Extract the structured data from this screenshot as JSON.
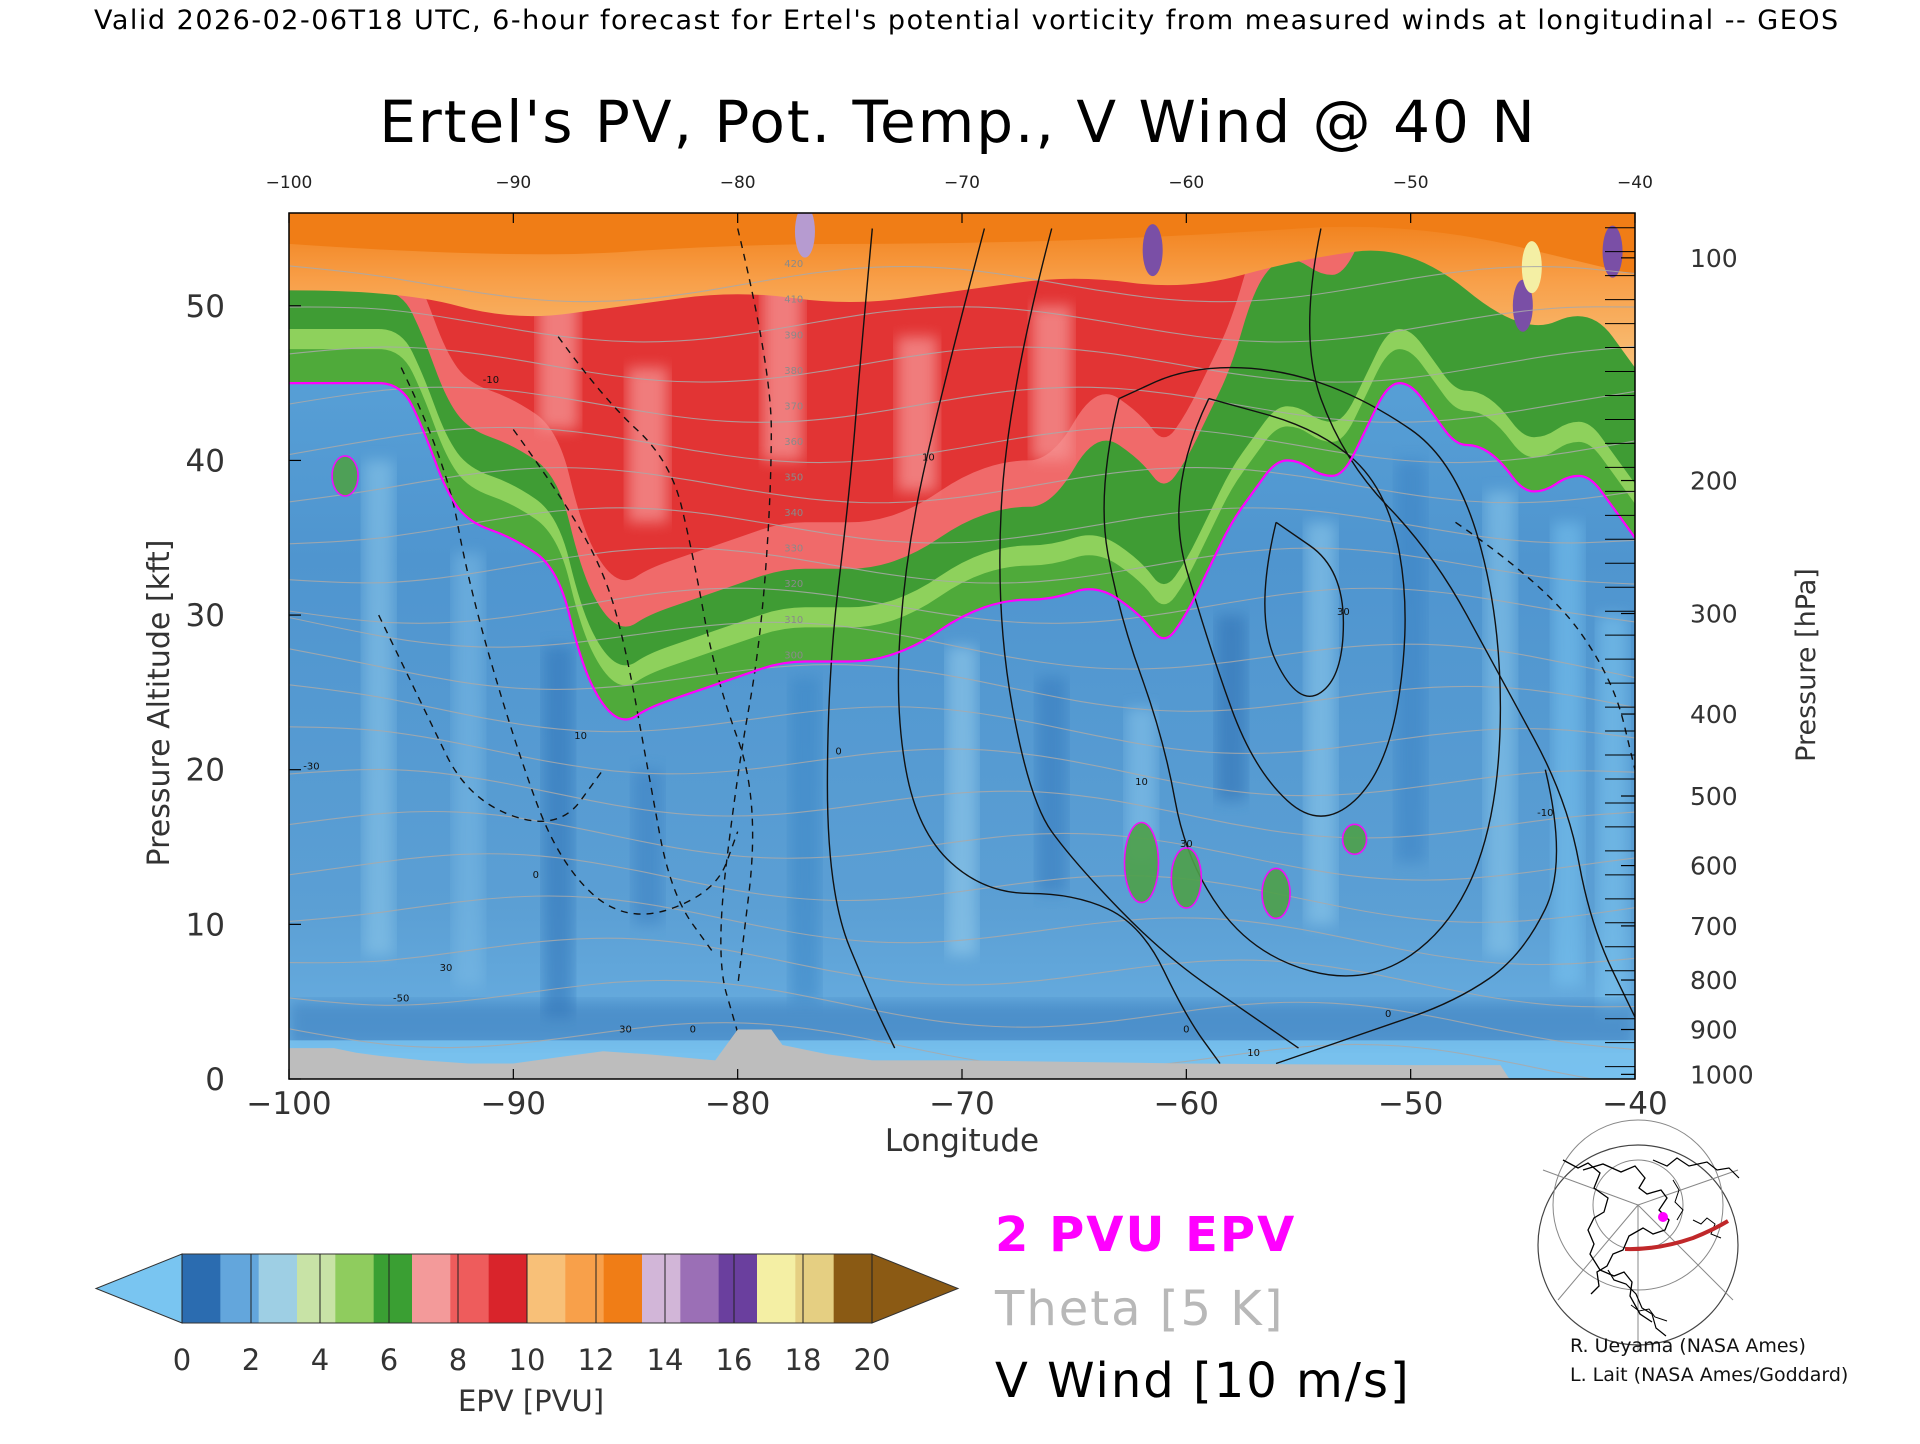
{
  "header": {
    "valid_line": "Valid 2026-02-06T18 UTC, 6-hour forecast for Ertel's potential vorticity from measured winds at longitudinal -- GEOS"
  },
  "chart_data": {
    "type": "heatmap",
    "title": "Ertel's PV, Pot. Temp., V Wind @ 40 N",
    "xlabel": "Longitude",
    "ylabel_left": "Pressure Altitude [kft]",
    "ylabel_right": "Pressure [hPa]",
    "xlim": [
      -100,
      -40
    ],
    "ylim": [
      0,
      56
    ],
    "x_ticks_bottom": [
      "−100",
      "−90",
      "−80",
      "−70",
      "−60",
      "−50",
      "−40"
    ],
    "x_ticks_top": [
      "−100",
      "−90",
      "−80",
      "−70",
      "−60",
      "−50",
      "−40"
    ],
    "y_ticks_left": [
      "0",
      "10",
      "20",
      "30",
      "40",
      "50"
    ],
    "y_ticks_right": [
      {
        "label": "100",
        "kft": 53.1
      },
      {
        "label": "200",
        "kft": 38.7
      },
      {
        "label": "300",
        "kft": 30.1
      },
      {
        "label": "400",
        "kft": 23.6
      },
      {
        "label": "500",
        "kft": 18.3
      },
      {
        "label": "600",
        "kft": 13.8
      },
      {
        "label": "700",
        "kft": 9.9
      },
      {
        "label": "800",
        "kft": 6.4
      },
      {
        "label": "900",
        "kft": 3.2
      },
      {
        "label": "1000",
        "kft": 0.3
      }
    ],
    "tropopause_2pvu": {
      "lon": [
        -100,
        -97,
        -95,
        -94,
        -93,
        -92,
        -90,
        -88,
        -87,
        -86,
        -85,
        -84,
        -82,
        -80,
        -78,
        -76,
        -74,
        -72,
        -70,
        -68,
        -66,
        -64,
        -62,
        -61,
        -60,
        -59,
        -58,
        -57,
        -56,
        -55,
        -54,
        -53,
        -52,
        -51,
        -50,
        -49,
        -48,
        -47,
        -46,
        -45,
        -44,
        -43,
        -42,
        -41,
        -40
      ],
      "kft": [
        45,
        45,
        45,
        42,
        38,
        36,
        35,
        33,
        27,
        24,
        23,
        24,
        25,
        26,
        27,
        27,
        27,
        28,
        30,
        31,
        31,
        32,
        30,
        28,
        30,
        33,
        36,
        38,
        40,
        40,
        39,
        39,
        42,
        45,
        45,
        43,
        41,
        41,
        40,
        38,
        38,
        39,
        39,
        37,
        35
      ]
    },
    "epv_regions": [
      {
        "name": "stratosphere_top_orange",
        "pvu": 12
      },
      {
        "name": "stratosphere_red",
        "pvu": 8
      },
      {
        "name": "tropopause_green",
        "pvu": 4
      },
      {
        "name": "troposphere_blue",
        "pvu": 1
      }
    ],
    "contour_labels": {
      "theta": [
        "420",
        "410",
        "390",
        "380",
        "370",
        "360",
        "350",
        "340",
        "330",
        "320",
        "310",
        "300"
      ],
      "wind": [
        "0",
        "10",
        "30",
        "-10",
        "-30",
        "-50",
        "0",
        "10",
        "30",
        "0",
        "0",
        "10",
        "10",
        "30",
        "-10",
        "30",
        "0"
      ]
    },
    "colorbar": {
      "label": "EPV [PVU]",
      "tick_labels": [
        "0",
        "2",
        "4",
        "6",
        "8",
        "10",
        "12",
        "14",
        "16",
        "18",
        "20"
      ],
      "colors": [
        "#2b6cb0",
        "#63a6dc",
        "#9ecfe4",
        "#c8e3a6",
        "#8fcc5e",
        "#3a9f33",
        "#f39a9a",
        "#ee5c5c",
        "#d9242b",
        "#f8c078",
        "#f8a04a",
        "#f07d16",
        "#d2b6d8",
        "#9b6fb6",
        "#6a3f9e",
        "#f4efa4",
        "#e5cf82",
        "#8a5a14"
      ],
      "under_color": "#79c5f1",
      "over_color": "#8b5a14"
    },
    "legend": [
      {
        "text": "2 PVU EPV",
        "color": "#ff00ff"
      },
      {
        "text": "Theta [5 K]",
        "color": "#b8b8b8"
      },
      {
        "text": "V Wind [10 m/s]",
        "color": "#000000"
      }
    ]
  },
  "credits": [
    "R. Ueyama (NASA Ames)",
    "L. Lait (NASA Ames/Goddard)"
  ],
  "map_inset": {
    "marker_color": "#ff00ff",
    "track_color": "#c0282a"
  }
}
